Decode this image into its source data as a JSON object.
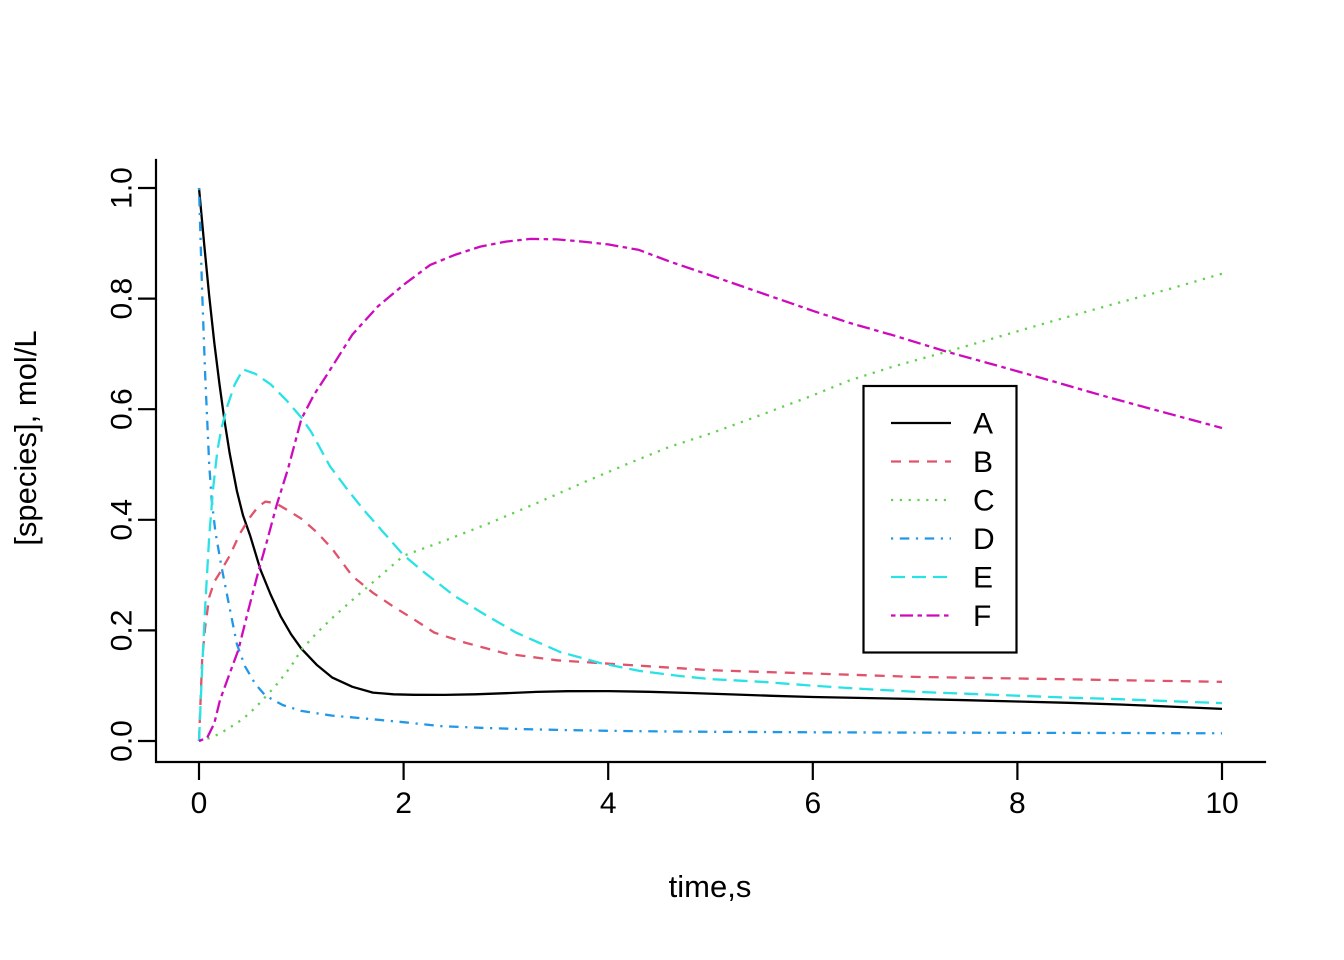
{
  "chart_data": {
    "type": "line",
    "title": "",
    "xlabel": "time,s",
    "ylabel": "[species], mol/L",
    "xlim": [
      -0.4,
      10.4
    ],
    "ylim": [
      -0.04,
      1.04
    ],
    "x_ticks": [
      "0",
      "2",
      "4",
      "6",
      "8",
      "10"
    ],
    "x_tick_values": [
      0,
      2,
      4,
      6,
      8,
      10
    ],
    "y_ticks": [
      "0.0",
      "0.2",
      "0.4",
      "0.6",
      "0.8",
      "1.0"
    ],
    "y_tick_values": [
      0.0,
      0.2,
      0.4,
      0.6,
      0.8,
      1.0
    ],
    "grid": false,
    "axis_style": "L-open",
    "legend_position": "right-center-boxed",
    "series": [
      {
        "name": "A",
        "color": "#000000",
        "linetype": "solid",
        "points": [
          [
            0,
            1.0
          ],
          [
            0.05,
            0.9
          ],
          [
            0.1,
            0.805
          ],
          [
            0.15,
            0.72
          ],
          [
            0.2,
            0.645
          ],
          [
            0.25,
            0.578
          ],
          [
            0.3,
            0.52
          ],
          [
            0.37,
            0.452
          ],
          [
            0.43,
            0.408
          ],
          [
            0.5,
            0.371
          ],
          [
            0.6,
            0.31
          ],
          [
            0.7,
            0.265
          ],
          [
            0.8,
            0.225
          ],
          [
            0.9,
            0.193
          ],
          [
            1.0,
            0.167
          ],
          [
            1.15,
            0.138
          ],
          [
            1.3,
            0.115
          ],
          [
            1.5,
            0.098
          ],
          [
            1.7,
            0.0875
          ],
          [
            1.9,
            0.0845
          ],
          [
            2.1,
            0.0835
          ],
          [
            2.4,
            0.0833
          ],
          [
            2.7,
            0.0845
          ],
          [
            3.0,
            0.0865
          ],
          [
            3.3,
            0.0888
          ],
          [
            3.6,
            0.09
          ],
          [
            4.0,
            0.0902
          ],
          [
            4.4,
            0.089
          ],
          [
            4.8,
            0.0868
          ],
          [
            5.2,
            0.0843
          ],
          [
            5.6,
            0.0818
          ],
          [
            6.0,
            0.0795
          ],
          [
            6.5,
            0.0778
          ],
          [
            7.0,
            0.076
          ],
          [
            7.5,
            0.0738
          ],
          [
            8.0,
            0.0715
          ],
          [
            8.5,
            0.069
          ],
          [
            9.0,
            0.066
          ],
          [
            9.5,
            0.0622
          ],
          [
            10,
            0.058
          ]
        ]
      },
      {
        "name": "B",
        "color": "#DF536B",
        "linetype": "dashed",
        "points": [
          [
            0,
            0
          ],
          [
            0.03,
            0.145
          ],
          [
            0.06,
            0.205
          ],
          [
            0.1,
            0.26
          ],
          [
            0.15,
            0.288
          ],
          [
            0.2,
            0.303
          ],
          [
            0.3,
            0.335
          ],
          [
            0.4,
            0.375
          ],
          [
            0.5,
            0.405
          ],
          [
            0.58,
            0.424
          ],
          [
            0.65,
            0.433
          ],
          [
            0.75,
            0.43
          ],
          [
            0.85,
            0.419
          ],
          [
            1.0,
            0.402
          ],
          [
            1.15,
            0.378
          ],
          [
            1.3,
            0.348
          ],
          [
            1.5,
            0.298
          ],
          [
            1.7,
            0.268
          ],
          [
            1.9,
            0.243
          ],
          [
            2.1,
            0.22
          ],
          [
            2.3,
            0.196
          ],
          [
            2.6,
            0.178
          ],
          [
            3.0,
            0.158
          ],
          [
            3.5,
            0.146
          ],
          [
            3.9,
            0.141
          ],
          [
            4.4,
            0.135
          ],
          [
            5.0,
            0.128
          ],
          [
            5.5,
            0.125
          ],
          [
            6.0,
            0.122
          ],
          [
            6.5,
            0.119
          ],
          [
            7.0,
            0.116
          ],
          [
            7.5,
            0.1145
          ],
          [
            8.0,
            0.113
          ],
          [
            8.5,
            0.1115
          ],
          [
            9.0,
            0.11
          ],
          [
            9.5,
            0.1085
          ],
          [
            10,
            0.107
          ]
        ]
      },
      {
        "name": "C",
        "color": "#61D04F",
        "linetype": "dotted",
        "points": [
          [
            0,
            0
          ],
          [
            0.1,
            0.005
          ],
          [
            0.2,
            0.013
          ],
          [
            0.3,
            0.024
          ],
          [
            0.43,
            0.04
          ],
          [
            0.55,
            0.06
          ],
          [
            0.65,
            0.08
          ],
          [
            0.75,
            0.1
          ],
          [
            0.9,
            0.135
          ],
          [
            1.0,
            0.165
          ],
          [
            1.15,
            0.195
          ],
          [
            1.3,
            0.222
          ],
          [
            1.5,
            0.255
          ],
          [
            1.75,
            0.295
          ],
          [
            2.0,
            0.335
          ],
          [
            2.4,
            0.362
          ],
          [
            2.84,
            0.394
          ],
          [
            3.3,
            0.43
          ],
          [
            3.79,
            0.47
          ],
          [
            4.2,
            0.502
          ],
          [
            4.6,
            0.532
          ],
          [
            5.0,
            0.556
          ],
          [
            5.5,
            0.59
          ],
          [
            6.0,
            0.625
          ],
          [
            6.36,
            0.652
          ],
          [
            6.8,
            0.678
          ],
          [
            7.31,
            0.704
          ],
          [
            7.8,
            0.73
          ],
          [
            8.3,
            0.757
          ],
          [
            8.9,
            0.788
          ],
          [
            9.5,
            0.818
          ],
          [
            10,
            0.845
          ]
        ]
      },
      {
        "name": "D",
        "color": "#2297E6",
        "linetype": "dotdash",
        "points": [
          [
            0,
            1.0
          ],
          [
            0.03,
            0.815
          ],
          [
            0.06,
            0.665
          ],
          [
            0.1,
            0.5
          ],
          [
            0.124,
            0.436
          ],
          [
            0.16,
            0.378
          ],
          [
            0.22,
            0.315
          ],
          [
            0.3,
            0.24
          ],
          [
            0.37,
            0.175
          ],
          [
            0.45,
            0.135
          ],
          [
            0.55,
            0.103
          ],
          [
            0.65,
            0.082
          ],
          [
            0.82,
            0.065
          ],
          [
            1.0,
            0.0545
          ],
          [
            1.3,
            0.046
          ],
          [
            1.6,
            0.041
          ],
          [
            2.0,
            0.034
          ],
          [
            2.36,
            0.027
          ],
          [
            2.8,
            0.0235
          ],
          [
            3.2,
            0.0213
          ],
          [
            3.6,
            0.0197
          ],
          [
            4.0,
            0.0185
          ],
          [
            4.5,
            0.0173
          ],
          [
            5.0,
            0.0166
          ],
          [
            5.5,
            0.0162
          ],
          [
            6.0,
            0.0158
          ],
          [
            7.0,
            0.0152
          ],
          [
            8.0,
            0.0148
          ],
          [
            9.0,
            0.0144
          ],
          [
            10,
            0.014
          ]
        ]
      },
      {
        "name": "E",
        "color": "#28E2E5",
        "linetype": "longdash",
        "points": [
          [
            0,
            0
          ],
          [
            0.03,
            0.13
          ],
          [
            0.06,
            0.24
          ],
          [
            0.1,
            0.37
          ],
          [
            0.14,
            0.46
          ],
          [
            0.18,
            0.525
          ],
          [
            0.22,
            0.566
          ],
          [
            0.28,
            0.607
          ],
          [
            0.35,
            0.645
          ],
          [
            0.43,
            0.672
          ],
          [
            0.55,
            0.664
          ],
          [
            0.7,
            0.645
          ],
          [
            0.85,
            0.617
          ],
          [
            1.0,
            0.585
          ],
          [
            1.1,
            0.558
          ],
          [
            1.28,
            0.497
          ],
          [
            1.45,
            0.455
          ],
          [
            1.6,
            0.42
          ],
          [
            1.8,
            0.378
          ],
          [
            2.0,
            0.336
          ],
          [
            2.2,
            0.305
          ],
          [
            2.5,
            0.262
          ],
          [
            2.8,
            0.228
          ],
          [
            3.1,
            0.196
          ],
          [
            3.53,
            0.161
          ],
          [
            3.92,
            0.141
          ],
          [
            4.3,
            0.127
          ],
          [
            4.7,
            0.1175
          ],
          [
            5.0,
            0.112
          ],
          [
            5.5,
            0.107
          ],
          [
            6.0,
            0.1
          ],
          [
            6.5,
            0.094
          ],
          [
            7.05,
            0.0886
          ],
          [
            7.5,
            0.0855
          ],
          [
            8.0,
            0.082
          ],
          [
            8.5,
            0.0785
          ],
          [
            9.0,
            0.0755
          ],
          [
            9.5,
            0.072
          ],
          [
            10,
            0.0685
          ]
        ]
      },
      {
        "name": "F",
        "color": "#CD0BBC",
        "linetype": "twodash",
        "points": [
          [
            0,
            0
          ],
          [
            0.08,
            0.006
          ],
          [
            0.15,
            0.032
          ],
          [
            0.205,
            0.074
          ],
          [
            0.28,
            0.112
          ],
          [
            0.385,
            0.165
          ],
          [
            0.48,
            0.235
          ],
          [
            0.58,
            0.306
          ],
          [
            0.67,
            0.365
          ],
          [
            0.76,
            0.427
          ],
          [
            0.87,
            0.492
          ],
          [
            1.0,
            0.582
          ],
          [
            1.12,
            0.625
          ],
          [
            1.25,
            0.662
          ],
          [
            1.5,
            0.735
          ],
          [
            1.75,
            0.786
          ],
          [
            2.0,
            0.825
          ],
          [
            2.26,
            0.861
          ],
          [
            2.5,
            0.879
          ],
          [
            2.75,
            0.894
          ],
          [
            3.0,
            0.903
          ],
          [
            3.24,
            0.908
          ],
          [
            3.5,
            0.907
          ],
          [
            3.75,
            0.903
          ],
          [
            4.0,
            0.898
          ],
          [
            4.3,
            0.888
          ],
          [
            4.6,
            0.867
          ],
          [
            5.0,
            0.842
          ],
          [
            5.5,
            0.81
          ],
          [
            6.0,
            0.778
          ],
          [
            6.36,
            0.756
          ],
          [
            6.8,
            0.733
          ],
          [
            7.31,
            0.704
          ],
          [
            7.8,
            0.679
          ],
          [
            8.3,
            0.653
          ],
          [
            8.9,
            0.621
          ],
          [
            9.5,
            0.591
          ],
          [
            10,
            0.566
          ]
        ]
      }
    ],
    "legend": {
      "entries": [
        {
          "label": "A"
        },
        {
          "label": "B"
        },
        {
          "label": "C"
        },
        {
          "label": "D"
        },
        {
          "label": "E"
        },
        {
          "label": "F"
        }
      ]
    }
  }
}
